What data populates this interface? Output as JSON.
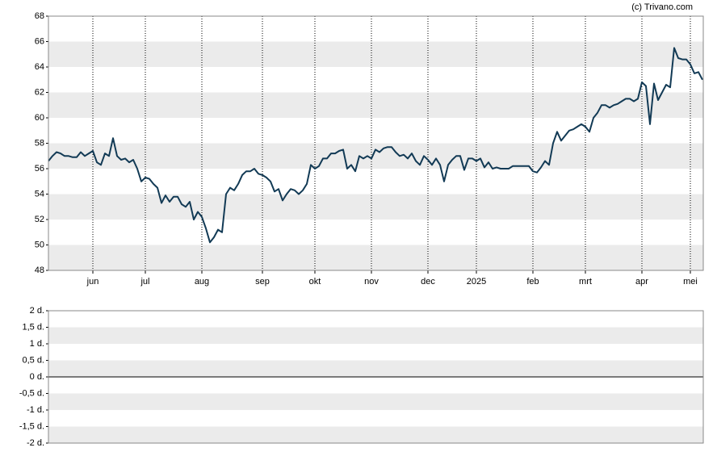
{
  "credit": "(c) Trivano.com",
  "chart_data": [
    {
      "type": "line",
      "categories": [
        null,
        null,
        null,
        null,
        null,
        null,
        null,
        null,
        null,
        null,
        null,
        "jun",
        null,
        null,
        null,
        null,
        null,
        null,
        null,
        null,
        null,
        null,
        null,
        null,
        "jul",
        null,
        null,
        null,
        null,
        null,
        null,
        null,
        null,
        null,
        null,
        null,
        null,
        null,
        "aug",
        null,
        null,
        null,
        null,
        null,
        null,
        null,
        null,
        null,
        null,
        null,
        null,
        null,
        null,
        "sep",
        null,
        null,
        null,
        null,
        null,
        null,
        null,
        null,
        null,
        null,
        null,
        null,
        "okt",
        null,
        null,
        null,
        null,
        null,
        null,
        null,
        null,
        null,
        null,
        null,
        null,
        null,
        "nov",
        null,
        null,
        null,
        null,
        null,
        null,
        null,
        null,
        null,
        null,
        null,
        null,
        null,
        "dec",
        null,
        null,
        null,
        null,
        null,
        null,
        null,
        null,
        null,
        null,
        null,
        "2025",
        null,
        null,
        null,
        null,
        null,
        null,
        null,
        null,
        null,
        null,
        null,
        null,
        null,
        "feb",
        null,
        null,
        null,
        null,
        null,
        null,
        null,
        null,
        null,
        null,
        null,
        null,
        "mrt",
        null,
        null,
        null,
        null,
        null,
        null,
        null,
        null,
        null,
        null,
        null,
        null,
        null,
        "apr",
        null,
        null,
        null,
        null,
        null,
        null,
        null,
        null,
        null,
        null,
        null,
        "mei",
        null,
        null,
        null
      ],
      "series": [
        {
          "color": "#123a55",
          "values": [
            56.6,
            57,
            57.3,
            57.2,
            57,
            57,
            56.9,
            56.9,
            57.3,
            57,
            57.2,
            57.4,
            56.5,
            56.3,
            57.2,
            57,
            58.4,
            57,
            56.7,
            56.8,
            56.5,
            56.7,
            56,
            55,
            55.3,
            55.2,
            54.8,
            54.5,
            53.3,
            53.9,
            53.4,
            53.8,
            53.8,
            53.2,
            53,
            53.4,
            52,
            52.6,
            52.2,
            51.3,
            50.2,
            50.6,
            51.2,
            51,
            54,
            54.5,
            54.3,
            54.8,
            55.5,
            55.8,
            55.8,
            56,
            55.6,
            55.5,
            55.3,
            55,
            54.2,
            54.4,
            53.5,
            54,
            54.4,
            54.3,
            54,
            54.3,
            54.8,
            56.3,
            56,
            56.2,
            56.8,
            56.8,
            57.2,
            57.2,
            57.4,
            57.5,
            56,
            56.3,
            55.8,
            57,
            56.8,
            57,
            56.8,
            57.5,
            57.3,
            57.6,
            57.7,
            57.7,
            57.3,
            57,
            57.1,
            56.8,
            57.2,
            56.6,
            56.3,
            57,
            56.7,
            56.3,
            56.8,
            56.3,
            55,
            56.3,
            56.7,
            57,
            57,
            55.9,
            56.8,
            56.8,
            56.6,
            56.8,
            56.1,
            56.5,
            56,
            56.1,
            56,
            56,
            56,
            56.2,
            56.2,
            56.2,
            56.2,
            56.2,
            55.8,
            55.7,
            56.1,
            56.6,
            56.3,
            58,
            58.9,
            58.2,
            58.6,
            59,
            59.1,
            59.3,
            59.5,
            59.3,
            58.9,
            60,
            60.4,
            61,
            61,
            60.8,
            61,
            61.1,
            61.3,
            61.5,
            61.5,
            61.3,
            61.5,
            62.8,
            62.5,
            59.5,
            62.7,
            61.4,
            62,
            62.6,
            62.4,
            65.5,
            64.7,
            64.6,
            64.6,
            64.2,
            63.5,
            63.6,
            63
          ]
        }
      ],
      "ylim": [
        48,
        68
      ],
      "yticks": [
        48,
        50,
        52,
        54,
        56,
        58,
        60,
        62,
        64,
        66,
        68
      ]
    },
    {
      "type": "line",
      "ylim": [
        -2,
        2
      ],
      "yticks": [
        {
          "value": -2,
          "label": "-2 d."
        },
        {
          "value": -1.5,
          "label": "-1,5 d."
        },
        {
          "value": -1,
          "label": "-1 d."
        },
        {
          "value": -0.5,
          "label": "-0,5 d."
        },
        {
          "value": 0,
          "label": "0 d."
        },
        {
          "value": 0.5,
          "label": "0,5 d."
        },
        {
          "value": 1,
          "label": "1 d."
        },
        {
          "value": 1.5,
          "label": "1,5 d."
        },
        {
          "value": 2,
          "label": "2 d."
        }
      ]
    }
  ]
}
